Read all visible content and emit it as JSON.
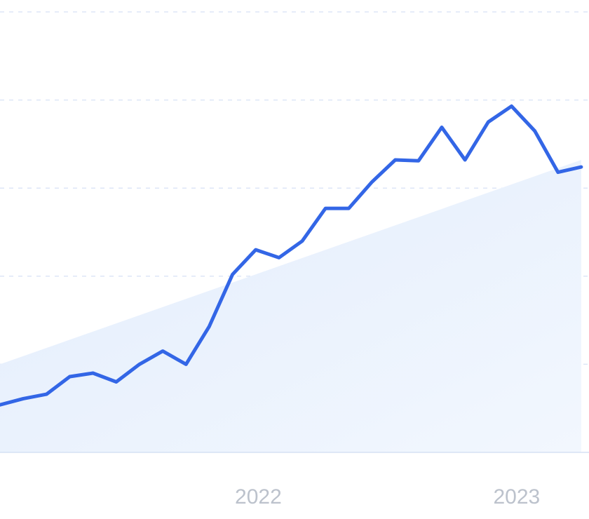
{
  "chart_data": {
    "type": "line",
    "title": "",
    "xlabel": "",
    "ylabel": "",
    "x_ticks": [
      "2022",
      "2023"
    ],
    "grid": true,
    "ylim": [
      0,
      5
    ],
    "series": [
      {
        "color": "#3366e6",
        "points": [
          [
            2021.0,
            0.54
          ],
          [
            2021.09,
            0.61
          ],
          [
            2021.18,
            0.66
          ],
          [
            2021.27,
            0.86
          ],
          [
            2021.36,
            0.9
          ],
          [
            2021.45,
            0.8
          ],
          [
            2021.54,
            1.0
          ],
          [
            2021.63,
            1.15
          ],
          [
            2021.72,
            1.0
          ],
          [
            2021.81,
            1.43
          ],
          [
            2021.9,
            2.02
          ],
          [
            2021.99,
            2.3
          ],
          [
            2022.08,
            2.21
          ],
          [
            2022.17,
            2.4
          ],
          [
            2022.26,
            2.77
          ],
          [
            2022.35,
            2.77
          ],
          [
            2022.44,
            3.07
          ],
          [
            2022.53,
            3.32
          ],
          [
            2022.62,
            3.31
          ],
          [
            2022.71,
            3.69
          ],
          [
            2022.8,
            3.32
          ],
          [
            2022.89,
            3.75
          ],
          [
            2022.98,
            3.93
          ],
          [
            2023.07,
            3.65
          ],
          [
            2023.16,
            3.18
          ],
          [
            2023.25,
            3.24
          ]
        ]
      }
    ],
    "trend_area": {
      "color": "#e6f0fc",
      "start": [
        2021.0,
        1.0
      ],
      "end": [
        2023.25,
        3.32
      ]
    }
  }
}
